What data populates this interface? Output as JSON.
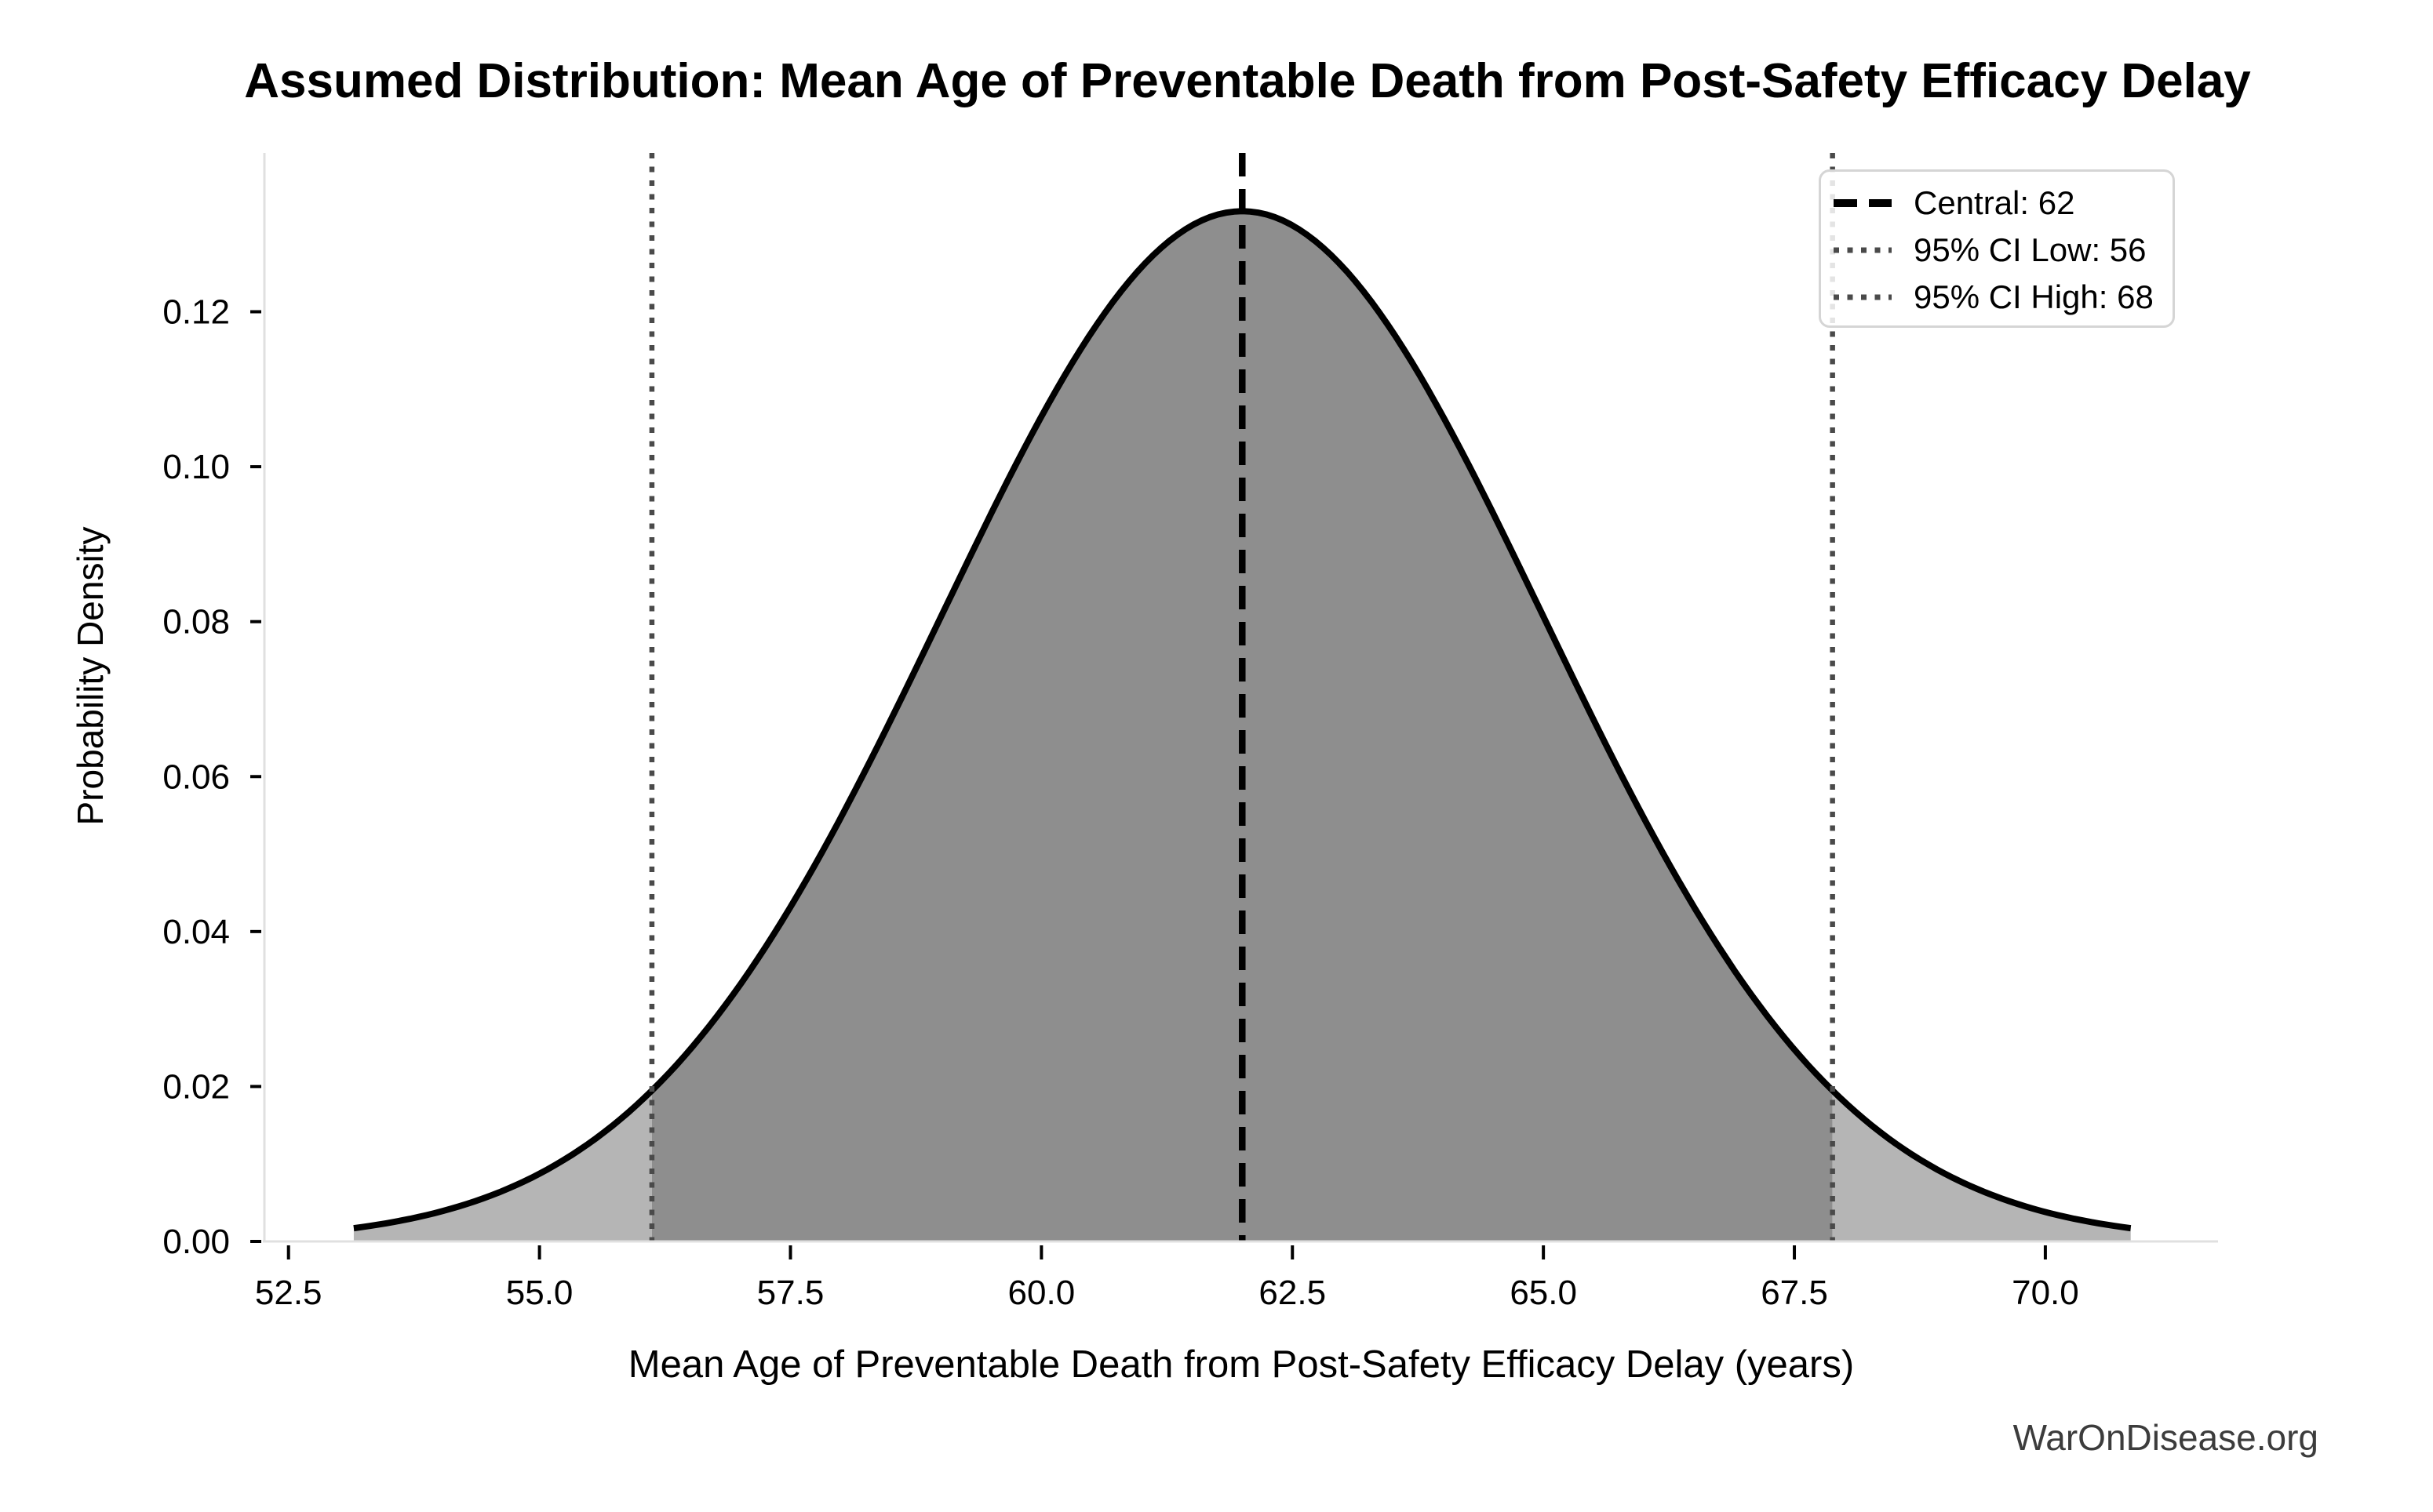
{
  "chart_data": {
    "type": "area",
    "title": "Assumed Distribution: Mean Age of Preventable Death from Post-Safety Efficacy Delay",
    "xlabel": "Mean Age of Preventable Death from Post-Safety Efficacy Delay (years)",
    "ylabel": "Probability Density",
    "watermark": "WarOnDisease.org",
    "distribution": {
      "shape": "normal",
      "mean": 62,
      "sigma": 3,
      "peak_density": 0.133,
      "curve_x_start": 53.15,
      "curve_x_end": 70.85
    },
    "central_line": {
      "x": 62,
      "label": "Central: 62",
      "style": "dashed",
      "color": "#000000"
    },
    "ci_low_line": {
      "x": 56.12,
      "label": "95% CI Low: 56",
      "style": "dotted",
      "color": "#4a4a4a"
    },
    "ci_high_line": {
      "x": 67.88,
      "label": "95% CI High: 68",
      "style": "dotted",
      "color": "#4a4a4a"
    },
    "legend": [
      {
        "label": "Central: 62",
        "style": "dashed",
        "color": "#000000"
      },
      {
        "label": "95% CI Low: 56",
        "style": "dotted",
        "color": "#4a4a4a"
      },
      {
        "label": "95% CI High: 68",
        "style": "dotted",
        "color": "#4a4a4a"
      }
    ],
    "legend_position": "upper right",
    "grid": false,
    "x_ticks": {
      "values": [
        52.5,
        55.0,
        57.5,
        60.0,
        62.5,
        65.0,
        67.5,
        70.0
      ],
      "labels": [
        "52.5",
        "55.0",
        "57.5",
        "60.0",
        "62.5",
        "65.0",
        "67.5",
        "70.0"
      ]
    },
    "y_ticks": {
      "values": [
        0.0,
        0.02,
        0.04,
        0.06,
        0.08,
        0.1,
        0.12
      ],
      "labels": [
        "0.00",
        "0.02",
        "0.04",
        "0.06",
        "0.08",
        "0.10",
        "0.12"
      ]
    },
    "xlim": [
      52.26,
      71.72
    ],
    "ylim": [
      0,
      0.1405
    ],
    "colors": {
      "curve": "#000000",
      "fill_central": "#8e8e8e",
      "fill_tails": "#b5b5b5",
      "spine": "#e0e0e0",
      "tick": "#000000",
      "watermark_text": "#3c3c3c"
    }
  }
}
